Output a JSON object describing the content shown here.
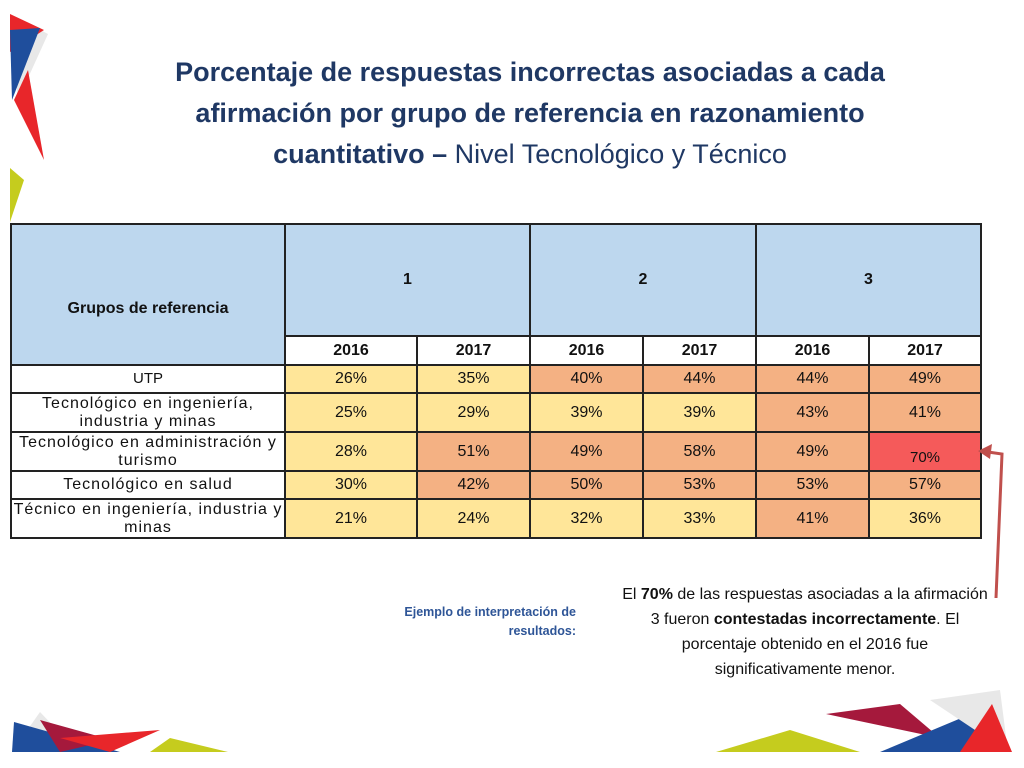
{
  "title": {
    "bold_part": "Porcentaje de respuestas incorrectas asociadas a cada afirmación por grupo de referencia en razonamiento cuantitativo –",
    "normal_part": " Nivel Tecnológico y Técnico"
  },
  "table": {
    "group_header": "Grupos de referencia",
    "statements": [
      "1",
      "2",
      "3"
    ],
    "years": [
      "2016",
      "2017",
      "2016",
      "2017",
      "2016",
      "2017"
    ],
    "rows": [
      {
        "group": "UTP",
        "values": [
          "26%",
          "35%",
          "40%",
          "44%",
          "44%",
          "49%"
        ],
        "levels": [
          "low",
          "low",
          "mid",
          "mid",
          "mid",
          "mid"
        ]
      },
      {
        "group": "Tecnológico en ingeniería, industria y minas",
        "values": [
          "25%",
          "29%",
          "39%",
          "39%",
          "43%",
          "41%"
        ],
        "levels": [
          "low",
          "low",
          "low",
          "low",
          "mid",
          "mid"
        ]
      },
      {
        "group": "Tecnológico en administración y turismo",
        "values": [
          "28%",
          "51%",
          "49%",
          "58%",
          "49%",
          "70%"
        ],
        "levels": [
          "low",
          "mid",
          "mid",
          "mid",
          "mid",
          "high"
        ]
      },
      {
        "group": "Tecnológico en salud",
        "values": [
          "30%",
          "42%",
          "50%",
          "53%",
          "53%",
          "57%"
        ],
        "levels": [
          "low",
          "mid",
          "mid",
          "mid",
          "mid",
          "mid"
        ]
      },
      {
        "group": "Técnico en ingeniería, industria y minas",
        "values": [
          "21%",
          "24%",
          "32%",
          "33%",
          "41%",
          "36%"
        ],
        "levels": [
          "low",
          "low",
          "low",
          "low",
          "mid",
          "low"
        ]
      }
    ]
  },
  "interpretation_label": "Ejemplo de interpretación de resultados:",
  "note": {
    "p1": "El ",
    "b1": "70%",
    "p2": " de las respuestas asociadas a la afirmación 3 fueron ",
    "b2": "contestadas incorrectamente",
    "p3": ". El porcentaje obtenido en el 2016 fue significativamente menor."
  },
  "colors": {
    "title": "#1f3864",
    "header_fill": "#bdd7ee",
    "low_fill": "#ffe699",
    "mid_fill": "#f4b183",
    "high_fill": "#f55a5a",
    "arrow": "#c0504d",
    "decor_red": "#e8262a",
    "decor_blue": "#1f4e9c",
    "decor_green": "#c5cc1e",
    "decor_maroon": "#a5193c"
  }
}
